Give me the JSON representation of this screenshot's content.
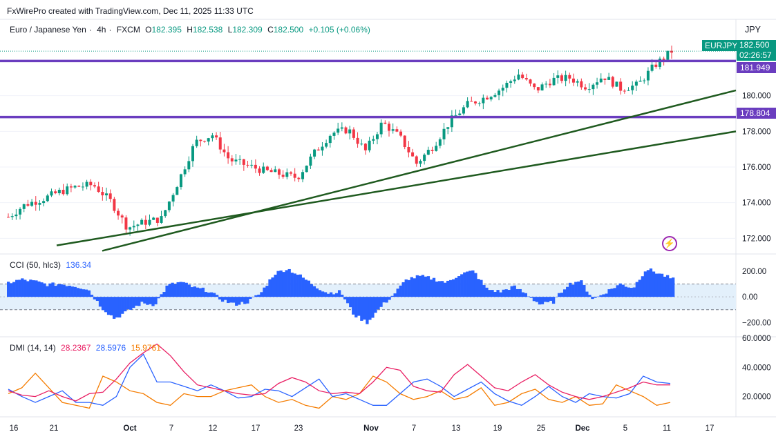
{
  "header": {
    "attribution": "FxWirePro created with TradingView.com, Dec 11, 2025 11:33 UTC"
  },
  "symbol": {
    "name": "Euro / Japanese Yen",
    "timeframe": "4h",
    "exchange": "FXCM",
    "ohlc": {
      "o_label": "O",
      "o": "182.395",
      "h_label": "H",
      "h": "182.538",
      "l_label": "L",
      "l": "182.309",
      "c_label": "C",
      "c": "182.500",
      "change": "+0.105 (+0.06%)"
    },
    "currency": "JPY",
    "ticker_tag": "EURJPY",
    "last_price": "182.500",
    "countdown": "02:26:57"
  },
  "levels": {
    "upper": "181.949",
    "lower": "178.804"
  },
  "cci": {
    "title": "CCI (50, hlc3)",
    "value": "136.34"
  },
  "dmi": {
    "title": "DMI (14, 14)",
    "adx": "28.2367",
    "plus_di": "28.5976",
    "minus_di": "15.9761"
  },
  "colors": {
    "up": "#089981",
    "down": "#f23645",
    "level": "#6a3dbf",
    "trend": "#1f5a1f",
    "cci": "#2962ff",
    "adx": "#e91e63",
    "plus": "#2962ff",
    "minus": "#f57c00"
  },
  "chart_data": {
    "type": "candlestick",
    "price_axis": {
      "ticks": [
        "180.000",
        "178.000",
        "176.000",
        "174.000",
        "172.000"
      ],
      "ylim": [
        171.2,
        183.2
      ]
    },
    "cci_axis": {
      "ticks": [
        "200.00",
        "0.00",
        "−200.00"
      ],
      "ylim": [
        -300,
        280
      ]
    },
    "dmi_axis": {
      "ticks": [
        "60.0000",
        "40.0000",
        "20.0000"
      ],
      "ylim": [
        8,
        60
      ]
    },
    "time_axis": {
      "ticks": [
        "16",
        "21",
        "Oct",
        "7",
        "12",
        "17",
        "23",
        "Nov",
        "7",
        "13",
        "19",
        "25",
        "Dec",
        "5",
        "11",
        "17"
      ]
    },
    "close_path": [
      173.2,
      173.9,
      174.2,
      174.6,
      174.9,
      175.0,
      174.1,
      172.6,
      172.9,
      173.1,
      175.2,
      177.4,
      177.8,
      176.4,
      176.1,
      175.8,
      175.6,
      175.4,
      176.8,
      177.9,
      178.1,
      176.9,
      178.5,
      177.7,
      176.2,
      177.2,
      178.6,
      179.5,
      179.9,
      180.4,
      181.2,
      180.3,
      180.9,
      181.0,
      180.5,
      181.1,
      180.4,
      180.6,
      181.7,
      182.5
    ],
    "levels": [
      181.949,
      178.804
    ],
    "trendlines": [
      {
        "from_bar": 0,
        "from_price": 171.6,
        "to_bar": 39,
        "to_price": 178.0
      },
      {
        "from_bar": 1,
        "from_price": 171.3,
        "to_bar": 39,
        "to_price": 180.3
      }
    ],
    "cci_values": [
      110,
      135,
      120,
      95,
      100,
      85,
      60,
      -80,
      -170,
      -110,
      -50,
      -60,
      90,
      115,
      70,
      50,
      -20,
      -60,
      -40,
      30,
      180,
      220,
      160,
      90,
      30,
      40,
      -140,
      -200,
      -80,
      20,
      140,
      160,
      140,
      110,
      180,
      200,
      60,
      40,
      80,
      20,
      -60,
      -40,
      90,
      130,
      -20,
      40,
      100,
      70,
      220,
      180,
      136
    ],
    "adx": [
      24,
      21,
      20,
      24,
      20,
      17,
      22,
      23,
      32,
      43,
      50,
      56,
      48,
      37,
      28,
      26,
      24,
      22,
      21,
      22,
      29,
      33,
      30,
      24,
      22,
      23,
      22,
      30,
      40,
      38,
      27,
      24,
      23,
      35,
      42,
      34,
      26,
      24,
      30,
      35,
      28,
      23,
      20,
      18,
      20,
      23,
      26,
      30,
      28,
      28
    ],
    "plus_di": [
      25,
      20,
      16,
      20,
      24,
      16,
      16,
      14,
      20,
      40,
      49,
      30,
      30,
      27,
      24,
      28,
      24,
      19,
      20,
      25,
      24,
      20,
      26,
      32,
      20,
      22,
      18,
      14,
      14,
      22,
      30,
      32,
      27,
      20,
      25,
      30,
      22,
      17,
      14,
      20,
      27,
      20,
      16,
      22,
      20,
      19,
      22,
      34,
      30,
      29
    ],
    "minus_di": [
      22,
      26,
      36,
      26,
      16,
      14,
      12,
      34,
      30,
      24,
      22,
      16,
      14,
      22,
      20,
      20,
      24,
      26,
      28,
      20,
      16,
      18,
      14,
      12,
      20,
      18,
      22,
      34,
      30,
      22,
      18,
      20,
      24,
      18,
      20,
      26,
      14,
      16,
      22,
      25,
      18,
      16,
      20,
      14,
      15,
      28,
      24,
      20,
      14,
      16
    ]
  }
}
